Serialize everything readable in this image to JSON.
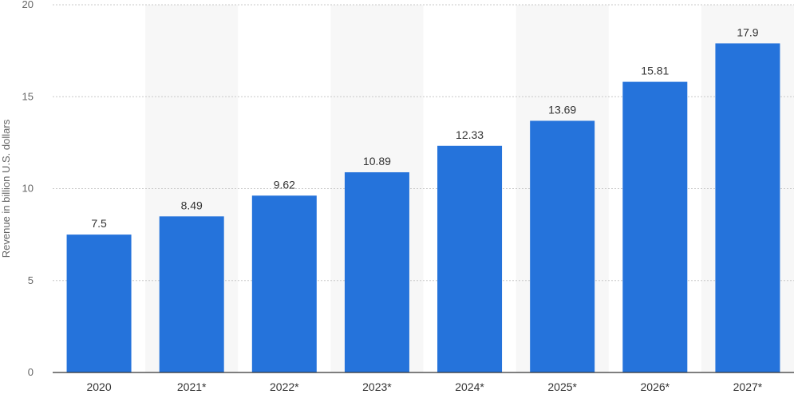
{
  "chart_data": {
    "type": "bar",
    "categories": [
      "2020",
      "2021*",
      "2022*",
      "2023*",
      "2024*",
      "2025*",
      "2026*",
      "2027*"
    ],
    "values": [
      7.5,
      8.49,
      9.62,
      10.89,
      12.33,
      13.69,
      15.81,
      17.9
    ],
    "value_labels": [
      "7.5",
      "8.49",
      "9.62",
      "10.89",
      "12.33",
      "13.69",
      "15.81",
      "17.9"
    ],
    "title": "",
    "xlabel": "",
    "ylabel": "Revenue in billion U.S. dollars",
    "ylim": [
      0,
      20
    ],
    "yticks": [
      "0",
      "5",
      "10",
      "15",
      "20"
    ],
    "grid": true,
    "bar_color": "#2573db",
    "band_color": "#f7f7f7",
    "grid_color": "#c8c8c8"
  }
}
